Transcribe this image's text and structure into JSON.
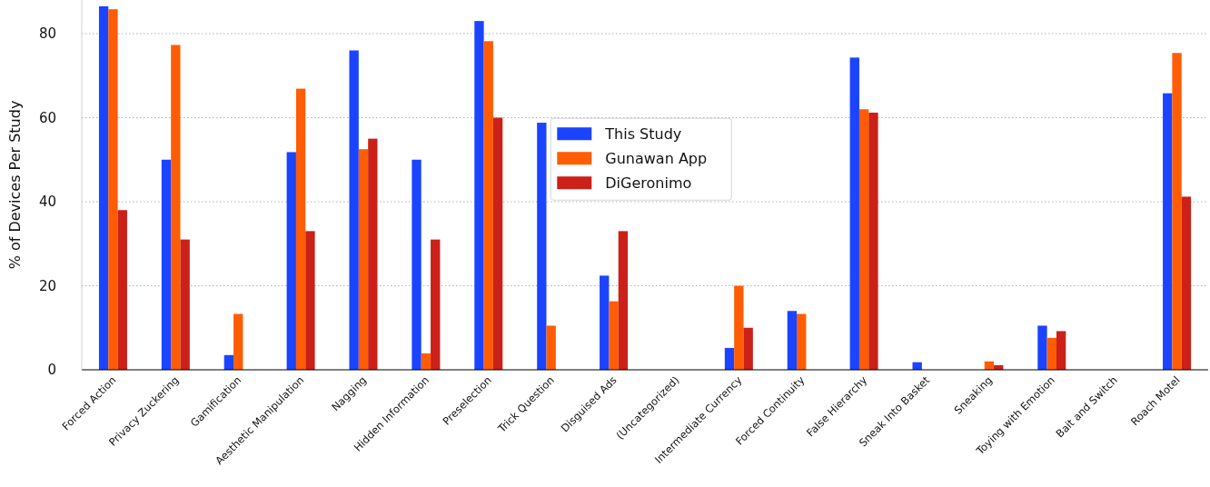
{
  "chart_data": {
    "type": "bar",
    "ylabel": "% of Devices Per Study",
    "categories": [
      "Forced Action",
      "Privacy Zuckering",
      "Gamification",
      "Aesthetic Manipulation",
      "Nagging",
      "Hidden Information",
      "Preselection",
      "Trick Question",
      "Disguised Ads",
      "(Uncategorized)",
      "Intermediate Currency",
      "Forced Continuity",
      "False Hierarchy",
      "Sneak Into Basket",
      "Sneaking",
      "Toying with Emotion",
      "Bait and Switch",
      "Roach Motel"
    ],
    "series": [
      {
        "name": "This Study",
        "color": "#1a44ff",
        "values": [
          86.5,
          50,
          3.5,
          51.8,
          76,
          50,
          83,
          58.8,
          22.4,
          0,
          5.2,
          14,
          74.3,
          1.8,
          0,
          10.5,
          0,
          65.8
        ]
      },
      {
        "name": "Gunawan App",
        "color": "#ff5c05",
        "values": [
          85.8,
          77.3,
          13.3,
          66.9,
          52.5,
          3.9,
          78.2,
          10.5,
          16.3,
          0,
          20,
          13.3,
          62,
          0,
          2,
          7.6,
          0,
          75.4
        ]
      },
      {
        "name": "DiGeronimo",
        "color": "#cb2119",
        "values": [
          38,
          31,
          0,
          33,
          55,
          31,
          60,
          0,
          33,
          0,
          10,
          0,
          61.2,
          0,
          1.1,
          9.2,
          0,
          41.2
        ]
      }
    ],
    "ylim": [
      0,
      88
    ],
    "yticks": [
      0,
      20,
      40,
      60,
      80
    ],
    "grid": "y",
    "legend": "center"
  }
}
